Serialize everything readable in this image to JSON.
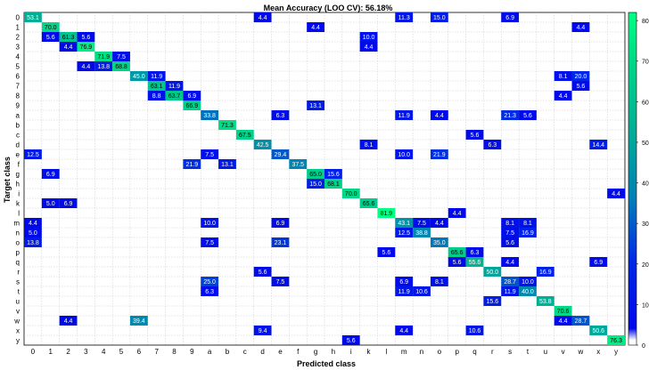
{
  "chart_data": {
    "type": "heatmap",
    "title": "Mean Accuracy (LOO CV): 56.18%",
    "xlabel": "Predicted class",
    "ylabel": "Target class",
    "labels": [
      "0",
      "1",
      "2",
      "3",
      "4",
      "5",
      "6",
      "7",
      "8",
      "9",
      "a",
      "b",
      "c",
      "d",
      "e",
      "f",
      "g",
      "h",
      "i",
      "k",
      "l",
      "m",
      "n",
      "o",
      "p",
      "q",
      "r",
      "s",
      "t",
      "u",
      "v",
      "w",
      "x",
      "y"
    ],
    "colorbar": {
      "min": 0,
      "max": 82,
      "ticks": [
        0,
        10,
        20,
        30,
        40,
        50,
        60,
        70,
        80
      ]
    },
    "grid": true,
    "cells": [
      [
        0,
        0,
        53.1
      ],
      [
        0,
        13,
        4.4
      ],
      [
        0,
        21,
        11.3
      ],
      [
        0,
        23,
        15.0
      ],
      [
        0,
        27,
        6.9
      ],
      [
        1,
        1,
        70.0
      ],
      [
        1,
        16,
        4.4
      ],
      [
        1,
        31,
        4.4
      ],
      [
        2,
        1,
        5.6
      ],
      [
        2,
        2,
        61.3
      ],
      [
        2,
        3,
        5.6
      ],
      [
        2,
        19,
        10.0
      ],
      [
        3,
        2,
        4.4
      ],
      [
        3,
        3,
        76.9
      ],
      [
        3,
        19,
        4.4
      ],
      [
        4,
        4,
        71.9
      ],
      [
        4,
        5,
        7.5
      ],
      [
        5,
        3,
        4.4
      ],
      [
        5,
        4,
        13.8
      ],
      [
        5,
        5,
        68.8
      ],
      [
        6,
        6,
        45.0
      ],
      [
        6,
        7,
        11.9
      ],
      [
        6,
        30,
        8.1
      ],
      [
        6,
        31,
        20.0
      ],
      [
        7,
        7,
        63.1
      ],
      [
        7,
        8,
        11.9
      ],
      [
        7,
        31,
        5.6
      ],
      [
        8,
        7,
        8.8
      ],
      [
        8,
        8,
        63.7
      ],
      [
        8,
        9,
        6.9
      ],
      [
        8,
        30,
        4.4
      ],
      [
        9,
        9,
        66.9
      ],
      [
        9,
        16,
        13.1
      ],
      [
        10,
        10,
        33.8
      ],
      [
        10,
        14,
        6.3
      ],
      [
        10,
        21,
        11.9
      ],
      [
        10,
        23,
        4.4
      ],
      [
        10,
        27,
        21.3
      ],
      [
        10,
        28,
        5.6
      ],
      [
        11,
        11,
        71.3
      ],
      [
        12,
        12,
        67.5
      ],
      [
        12,
        25,
        5.6
      ],
      [
        13,
        13,
        42.5
      ],
      [
        13,
        19,
        8.1
      ],
      [
        13,
        26,
        6.3
      ],
      [
        13,
        32,
        14.4
      ],
      [
        14,
        0,
        12.5
      ],
      [
        14,
        10,
        7.5
      ],
      [
        14,
        14,
        29.4
      ],
      [
        14,
        21,
        10.0
      ],
      [
        14,
        23,
        21.9
      ],
      [
        15,
        9,
        21.9
      ],
      [
        15,
        11,
        13.1
      ],
      [
        15,
        15,
        37.5
      ],
      [
        16,
        1,
        6.9
      ],
      [
        16,
        16,
        65.0
      ],
      [
        16,
        17,
        15.6
      ],
      [
        17,
        16,
        15.0
      ],
      [
        17,
        17,
        68.1
      ],
      [
        18,
        18,
        70.0
      ],
      [
        18,
        33,
        4.4
      ],
      [
        19,
        1,
        5.0
      ],
      [
        19,
        2,
        6.9
      ],
      [
        19,
        19,
        65.6
      ],
      [
        20,
        20,
        81.9
      ],
      [
        20,
        24,
        4.4
      ],
      [
        21,
        0,
        4.4
      ],
      [
        21,
        10,
        10.0
      ],
      [
        21,
        14,
        6.9
      ],
      [
        21,
        21,
        43.1
      ],
      [
        21,
        22,
        7.5
      ],
      [
        21,
        23,
        4.4
      ],
      [
        21,
        27,
        8.1
      ],
      [
        21,
        28,
        8.1
      ],
      [
        22,
        0,
        5.0
      ],
      [
        22,
        21,
        12.5
      ],
      [
        22,
        22,
        38.8
      ],
      [
        22,
        27,
        7.5
      ],
      [
        22,
        28,
        16.9
      ],
      [
        23,
        0,
        13.8
      ],
      [
        23,
        10,
        7.5
      ],
      [
        23,
        14,
        23.1
      ],
      [
        23,
        23,
        35.0
      ],
      [
        23,
        27,
        5.6
      ],
      [
        24,
        20,
        5.6
      ],
      [
        24,
        24,
        65.6
      ],
      [
        24,
        25,
        6.3
      ],
      [
        25,
        24,
        5.6
      ],
      [
        25,
        25,
        55.6
      ],
      [
        25,
        27,
        4.4
      ],
      [
        25,
        32,
        6.9
      ],
      [
        26,
        13,
        5.6
      ],
      [
        26,
        26,
        50.0
      ],
      [
        26,
        29,
        16.9
      ],
      [
        27,
        10,
        25.0
      ],
      [
        27,
        14,
        7.5
      ],
      [
        27,
        21,
        6.9
      ],
      [
        27,
        23,
        8.1
      ],
      [
        27,
        27,
        28.7
      ],
      [
        27,
        28,
        10.0
      ],
      [
        28,
        10,
        6.3
      ],
      [
        28,
        21,
        11.9
      ],
      [
        28,
        22,
        10.6
      ],
      [
        28,
        27,
        11.9
      ],
      [
        28,
        28,
        40.0
      ],
      [
        29,
        26,
        15.6
      ],
      [
        29,
        29,
        53.8
      ],
      [
        30,
        30,
        70.6
      ],
      [
        31,
        2,
        4.4
      ],
      [
        31,
        6,
        39.4
      ],
      [
        31,
        30,
        4.4
      ],
      [
        31,
        31,
        28.7
      ],
      [
        32,
        13,
        9.4
      ],
      [
        32,
        21,
        4.4
      ],
      [
        32,
        25,
        10.6
      ],
      [
        32,
        32,
        50.6
      ],
      [
        33,
        18,
        5.6
      ],
      [
        33,
        33,
        76.3
      ]
    ]
  }
}
